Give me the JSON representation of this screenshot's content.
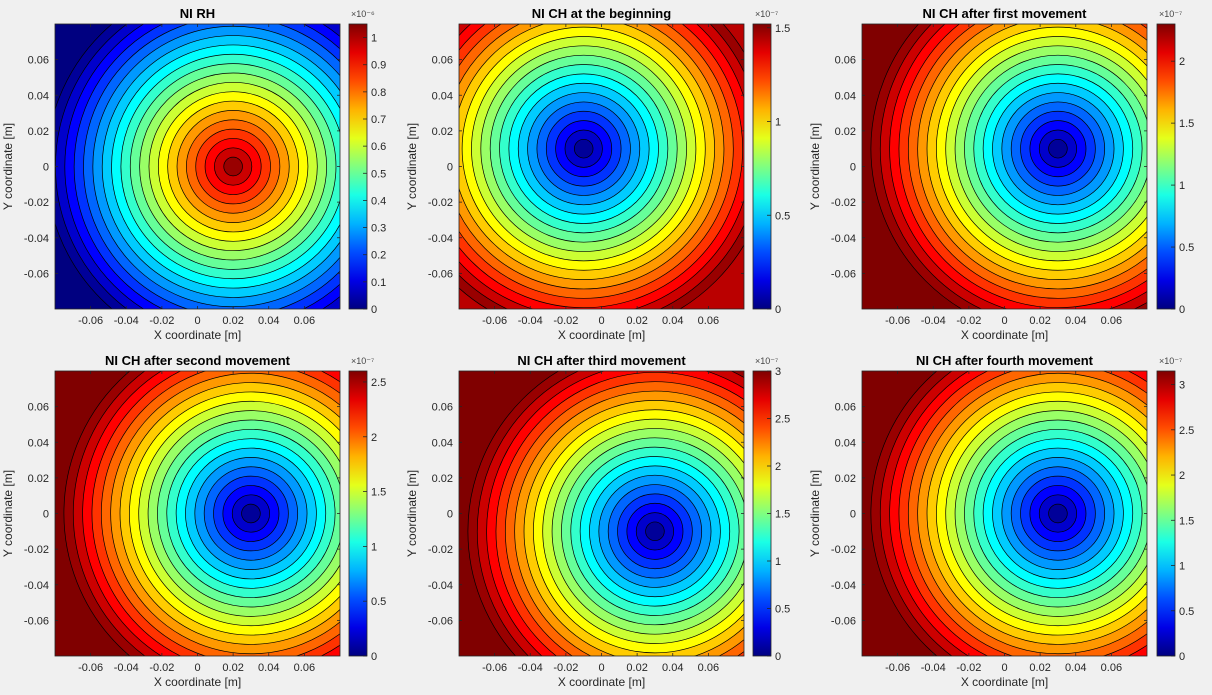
{
  "colormap": "jet",
  "chart_data": [
    {
      "type": "heatmap",
      "subtype": "filled-contour",
      "title": "NI RH",
      "xlabel": "X coordinate [m]",
      "ylabel": "Y coordinate [m]",
      "xlim": [
        -0.08,
        0.08
      ],
      "ylim": [
        -0.08,
        0.08
      ],
      "xticks": [
        -0.06,
        -0.04,
        -0.02,
        0,
        0.02,
        0.04,
        0.06
      ],
      "yticks": [
        -0.06,
        -0.04,
        -0.02,
        0,
        0.02,
        0.04,
        0.06
      ],
      "colorbar": {
        "multiplier": "×10⁻⁶",
        "min": 0,
        "max": 1.05,
        "ticks": [
          0,
          0.1,
          0.2,
          0.3,
          0.4,
          0.5,
          0.6,
          0.7,
          0.8,
          0.9,
          1
        ],
        "ticklabels": [
          "0",
          "0.1",
          "0.2",
          "0.3",
          "0.4",
          "0.5",
          "0.6",
          "0.7",
          "0.8",
          "0.9",
          "1"
        ]
      },
      "field": {
        "kind": "peak",
        "center": [
          0.02,
          0.0
        ],
        "min_value": 0,
        "max_value": 1.05
      },
      "levels": 20
    },
    {
      "type": "heatmap",
      "subtype": "filled-contour",
      "title": "NI CH at the beginning",
      "xlabel": "X coordinate [m]",
      "ylabel": "Y coordinate [m]",
      "xlim": [
        -0.08,
        0.08
      ],
      "ylim": [
        -0.08,
        0.08
      ],
      "xticks": [
        -0.06,
        -0.04,
        -0.02,
        0,
        0.02,
        0.04,
        0.06
      ],
      "yticks": [
        -0.06,
        -0.04,
        -0.02,
        0,
        0.02,
        0.04,
        0.06
      ],
      "colorbar": {
        "multiplier": "×10⁻⁷",
        "min": 0,
        "max": 1.52,
        "ticks": [
          0,
          0.5,
          1,
          1.5
        ],
        "ticklabels": [
          "0",
          "0.5",
          "1",
          "1.5"
        ]
      },
      "field": {
        "kind": "well",
        "center": [
          -0.01,
          0.01
        ],
        "min_value": 0,
        "max_value": 1.52
      },
      "levels": 20
    },
    {
      "type": "heatmap",
      "subtype": "filled-contour",
      "title": "NI CH after first movement",
      "xlabel": "X coordinate [m]",
      "ylabel": "Y coordinate [m]",
      "xlim": [
        -0.08,
        0.08
      ],
      "ylim": [
        -0.08,
        0.08
      ],
      "xticks": [
        -0.06,
        -0.04,
        -0.02,
        0,
        0.02,
        0.04,
        0.06
      ],
      "yticks": [
        -0.06,
        -0.04,
        -0.02,
        0,
        0.02,
        0.04,
        0.06
      ],
      "colorbar": {
        "multiplier": "×10⁻⁷",
        "min": 0,
        "max": 2.3,
        "ticks": [
          0,
          0.5,
          1,
          1.5,
          2
        ],
        "ticklabels": [
          "0",
          "0.5",
          "1",
          "1.5",
          "2"
        ]
      },
      "field": {
        "kind": "well",
        "center": [
          0.03,
          0.01
        ],
        "min_value": 0,
        "max_value": 2.3
      },
      "levels": 20
    },
    {
      "type": "heatmap",
      "subtype": "filled-contour",
      "title": "NI CH after second movement",
      "xlabel": "X coordinate [m]",
      "ylabel": "Y coordinate [m]",
      "xlim": [
        -0.08,
        0.08
      ],
      "ylim": [
        -0.08,
        0.08
      ],
      "xticks": [
        -0.06,
        -0.04,
        -0.02,
        0,
        0.02,
        0.04,
        0.06
      ],
      "yticks": [
        -0.06,
        -0.04,
        -0.02,
        0,
        0.02,
        0.04,
        0.06
      ],
      "colorbar": {
        "multiplier": "×10⁻⁷",
        "min": 0,
        "max": 2.6,
        "ticks": [
          0,
          0.5,
          1,
          1.5,
          2,
          2.5
        ],
        "ticklabels": [
          "0",
          "0.5",
          "1",
          "1.5",
          "2",
          "2.5"
        ]
      },
      "field": {
        "kind": "well",
        "center": [
          0.03,
          0.0
        ],
        "min_value": 0,
        "max_value": 2.6
      },
      "levels": 20
    },
    {
      "type": "heatmap",
      "subtype": "filled-contour",
      "title": "NI CH after third movement",
      "xlabel": "X coordinate [m]",
      "ylabel": "Y coordinate [m]",
      "xlim": [
        -0.08,
        0.08
      ],
      "ylim": [
        -0.08,
        0.08
      ],
      "xticks": [
        -0.06,
        -0.04,
        -0.02,
        0,
        0.02,
        0.04,
        0.06
      ],
      "yticks": [
        -0.06,
        -0.04,
        -0.02,
        0,
        0.02,
        0.04,
        0.06
      ],
      "colorbar": {
        "multiplier": "×10⁻⁷",
        "min": 0,
        "max": 3.0,
        "ticks": [
          0,
          0.5,
          1,
          1.5,
          2,
          2.5,
          3
        ],
        "ticklabels": [
          "0",
          "0.5",
          "1",
          "1.5",
          "2",
          "2.5",
          "3"
        ]
      },
      "field": {
        "kind": "well",
        "center": [
          0.03,
          -0.01
        ],
        "min_value": 0,
        "max_value": 3.0
      },
      "levels": 20
    },
    {
      "type": "heatmap",
      "subtype": "filled-contour",
      "title": "NI CH after fourth movement",
      "xlabel": "X coordinate [m]",
      "ylabel": "Y coordinate [m]",
      "xlim": [
        -0.08,
        0.08
      ],
      "ylim": [
        -0.08,
        0.08
      ],
      "xticks": [
        -0.06,
        -0.04,
        -0.02,
        0,
        0.02,
        0.04,
        0.06
      ],
      "yticks": [
        -0.06,
        -0.04,
        -0.02,
        0,
        0.02,
        0.04,
        0.06
      ],
      "colorbar": {
        "multiplier": "×10⁻⁷",
        "min": 0,
        "max": 3.15,
        "ticks": [
          0,
          0.5,
          1,
          1.5,
          2,
          2.5,
          3
        ],
        "ticklabels": [
          "0",
          "0.5",
          "1",
          "1.5",
          "2",
          "2.5",
          "3"
        ]
      },
      "field": {
        "kind": "well",
        "center": [
          0.03,
          0.0
        ],
        "min_value": 0,
        "max_value": 3.15
      },
      "levels": 20
    }
  ]
}
